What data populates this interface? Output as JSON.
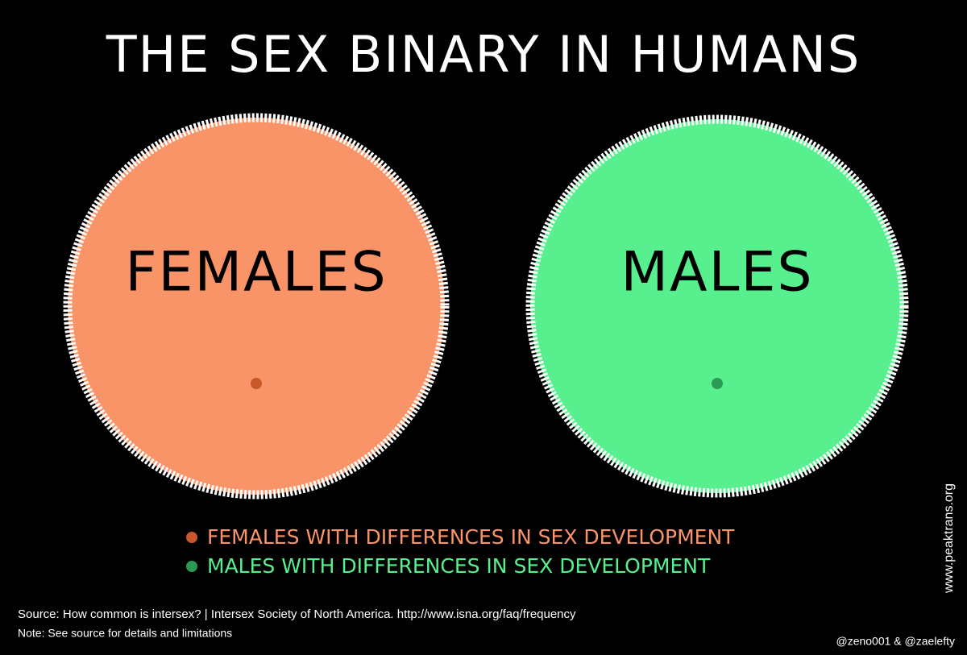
{
  "title": "THE SEX BINARY IN HUMANS",
  "circles": [
    {
      "label": "FEMALES"
    },
    {
      "label": "MALES"
    }
  ],
  "legend": [
    "FEMALES WITH DIFFERENCES IN SEX DEVELOPMENT",
    "MALES WITH DIFFERENCES IN SEX DEVELOPMENT"
  ],
  "footer": {
    "source": "Source: How common is intersex? | Intersex Society of North America. http://www.isna.org/faq/frequency",
    "note": "Note: See source for details and limitations",
    "credit": "@zeno001 & @zaelefty",
    "website": "www.peaktrans.org"
  }
}
